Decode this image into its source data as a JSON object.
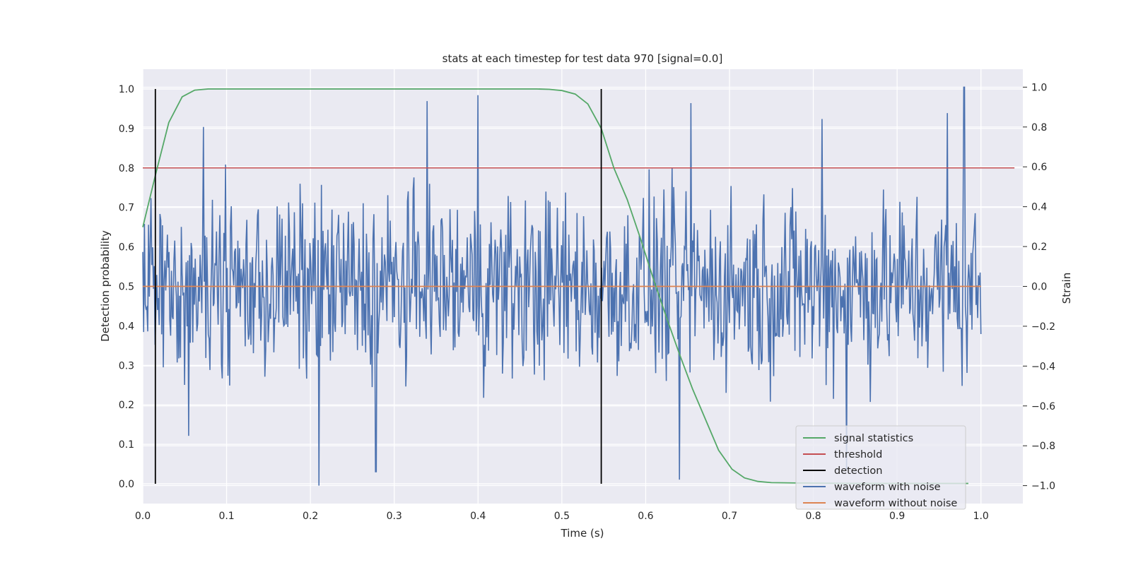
{
  "chart_data": {
    "type": "line",
    "title": "stats at each timestep for test data 970 [signal=0.0]",
    "xlabel": "Time (s)",
    "ylabel": "Detection probability",
    "ylabel_right": "Strain",
    "xlim": [
      0.0,
      1.05
    ],
    "ylim": [
      -0.05,
      1.05
    ],
    "ylim_right": [
      -1.09,
      1.09
    ],
    "xticks": [
      "0.0",
      "0.1",
      "0.2",
      "0.3",
      "0.4",
      "0.5",
      "0.6",
      "0.7",
      "0.8",
      "0.9",
      "1.0"
    ],
    "yticks": [
      "0.0",
      "0.1",
      "0.2",
      "0.3",
      "0.4",
      "0.5",
      "0.6",
      "0.7",
      "0.8",
      "0.9",
      "1.0"
    ],
    "yticks_right": [
      "−1.0",
      "−0.8",
      "−0.6",
      "−0.4",
      "−0.2",
      "0.0",
      "0.2",
      "0.4",
      "0.6",
      "0.8",
      "1.0"
    ],
    "grid": true,
    "legend_position": "lower-right",
    "series": [
      {
        "name": "signal statistics",
        "color": "#55a868",
        "axis": "left",
        "x": [
          0.0,
          0.016,
          0.031,
          0.047,
          0.062,
          0.078,
          0.1,
          0.2,
          0.3,
          0.4,
          0.47,
          0.485,
          0.5,
          0.516,
          0.531,
          0.547,
          0.562,
          0.578,
          0.594,
          0.609,
          0.625,
          0.64,
          0.656,
          0.672,
          0.687,
          0.703,
          0.718,
          0.734,
          0.75,
          0.78,
          0.85,
          0.95,
          0.985
        ],
        "values": [
          0.65,
          0.79,
          0.915,
          0.98,
          0.997,
          1.0,
          1.0,
          1.0,
          1.0,
          1.0,
          1.0,
          0.999,
          0.996,
          0.987,
          0.962,
          0.9,
          0.8,
          0.72,
          0.62,
          0.52,
          0.42,
          0.33,
          0.24,
          0.16,
          0.085,
          0.037,
          0.015,
          0.006,
          0.003,
          0.002,
          0.001,
          0.001,
          0.001
        ]
      },
      {
        "name": "threshold",
        "color": "#c44e52",
        "axis": "left",
        "x": [
          0.0,
          1.04
        ],
        "values": [
          0.8,
          0.8
        ]
      },
      {
        "name": "detection",
        "color": "#000000",
        "axis": "left",
        "segments": [
          {
            "x": 0.015,
            "y0": 0.0,
            "y1": 1.0
          },
          {
            "x": 0.547,
            "y0": 0.0,
            "y1": 1.0
          }
        ]
      },
      {
        "name": "waveform with noise",
        "color": "#4c72b0",
        "axis": "right",
        "generated": {
          "n": 1024,
          "x0": 0.0,
          "x1": 1.0,
          "amplitude": 0.35,
          "min": -1.0,
          "max": 1.0
        },
        "peaks": [
          {
            "x": 0.21,
            "y": -1.0
          },
          {
            "x": 0.278,
            "y": -0.93
          },
          {
            "x": 0.339,
            "y": 0.93
          },
          {
            "x": 0.4,
            "y": 0.96
          },
          {
            "x": 0.64,
            "y": -0.97
          },
          {
            "x": 0.654,
            "y": 0.92
          },
          {
            "x": 0.81,
            "y": 0.84
          },
          {
            "x": 0.84,
            "y": -0.92
          },
          {
            "x": 0.96,
            "y": 0.87
          },
          {
            "x": 0.98,
            "y": 1.0
          },
          {
            "x": 0.072,
            "y": 0.8
          },
          {
            "x": 0.055,
            "y": -0.75
          }
        ]
      },
      {
        "name": "waveform without noise",
        "color": "#dd8452",
        "axis": "right",
        "x": [
          0.0,
          1.0
        ],
        "values": [
          0.0,
          0.0
        ]
      }
    ]
  }
}
